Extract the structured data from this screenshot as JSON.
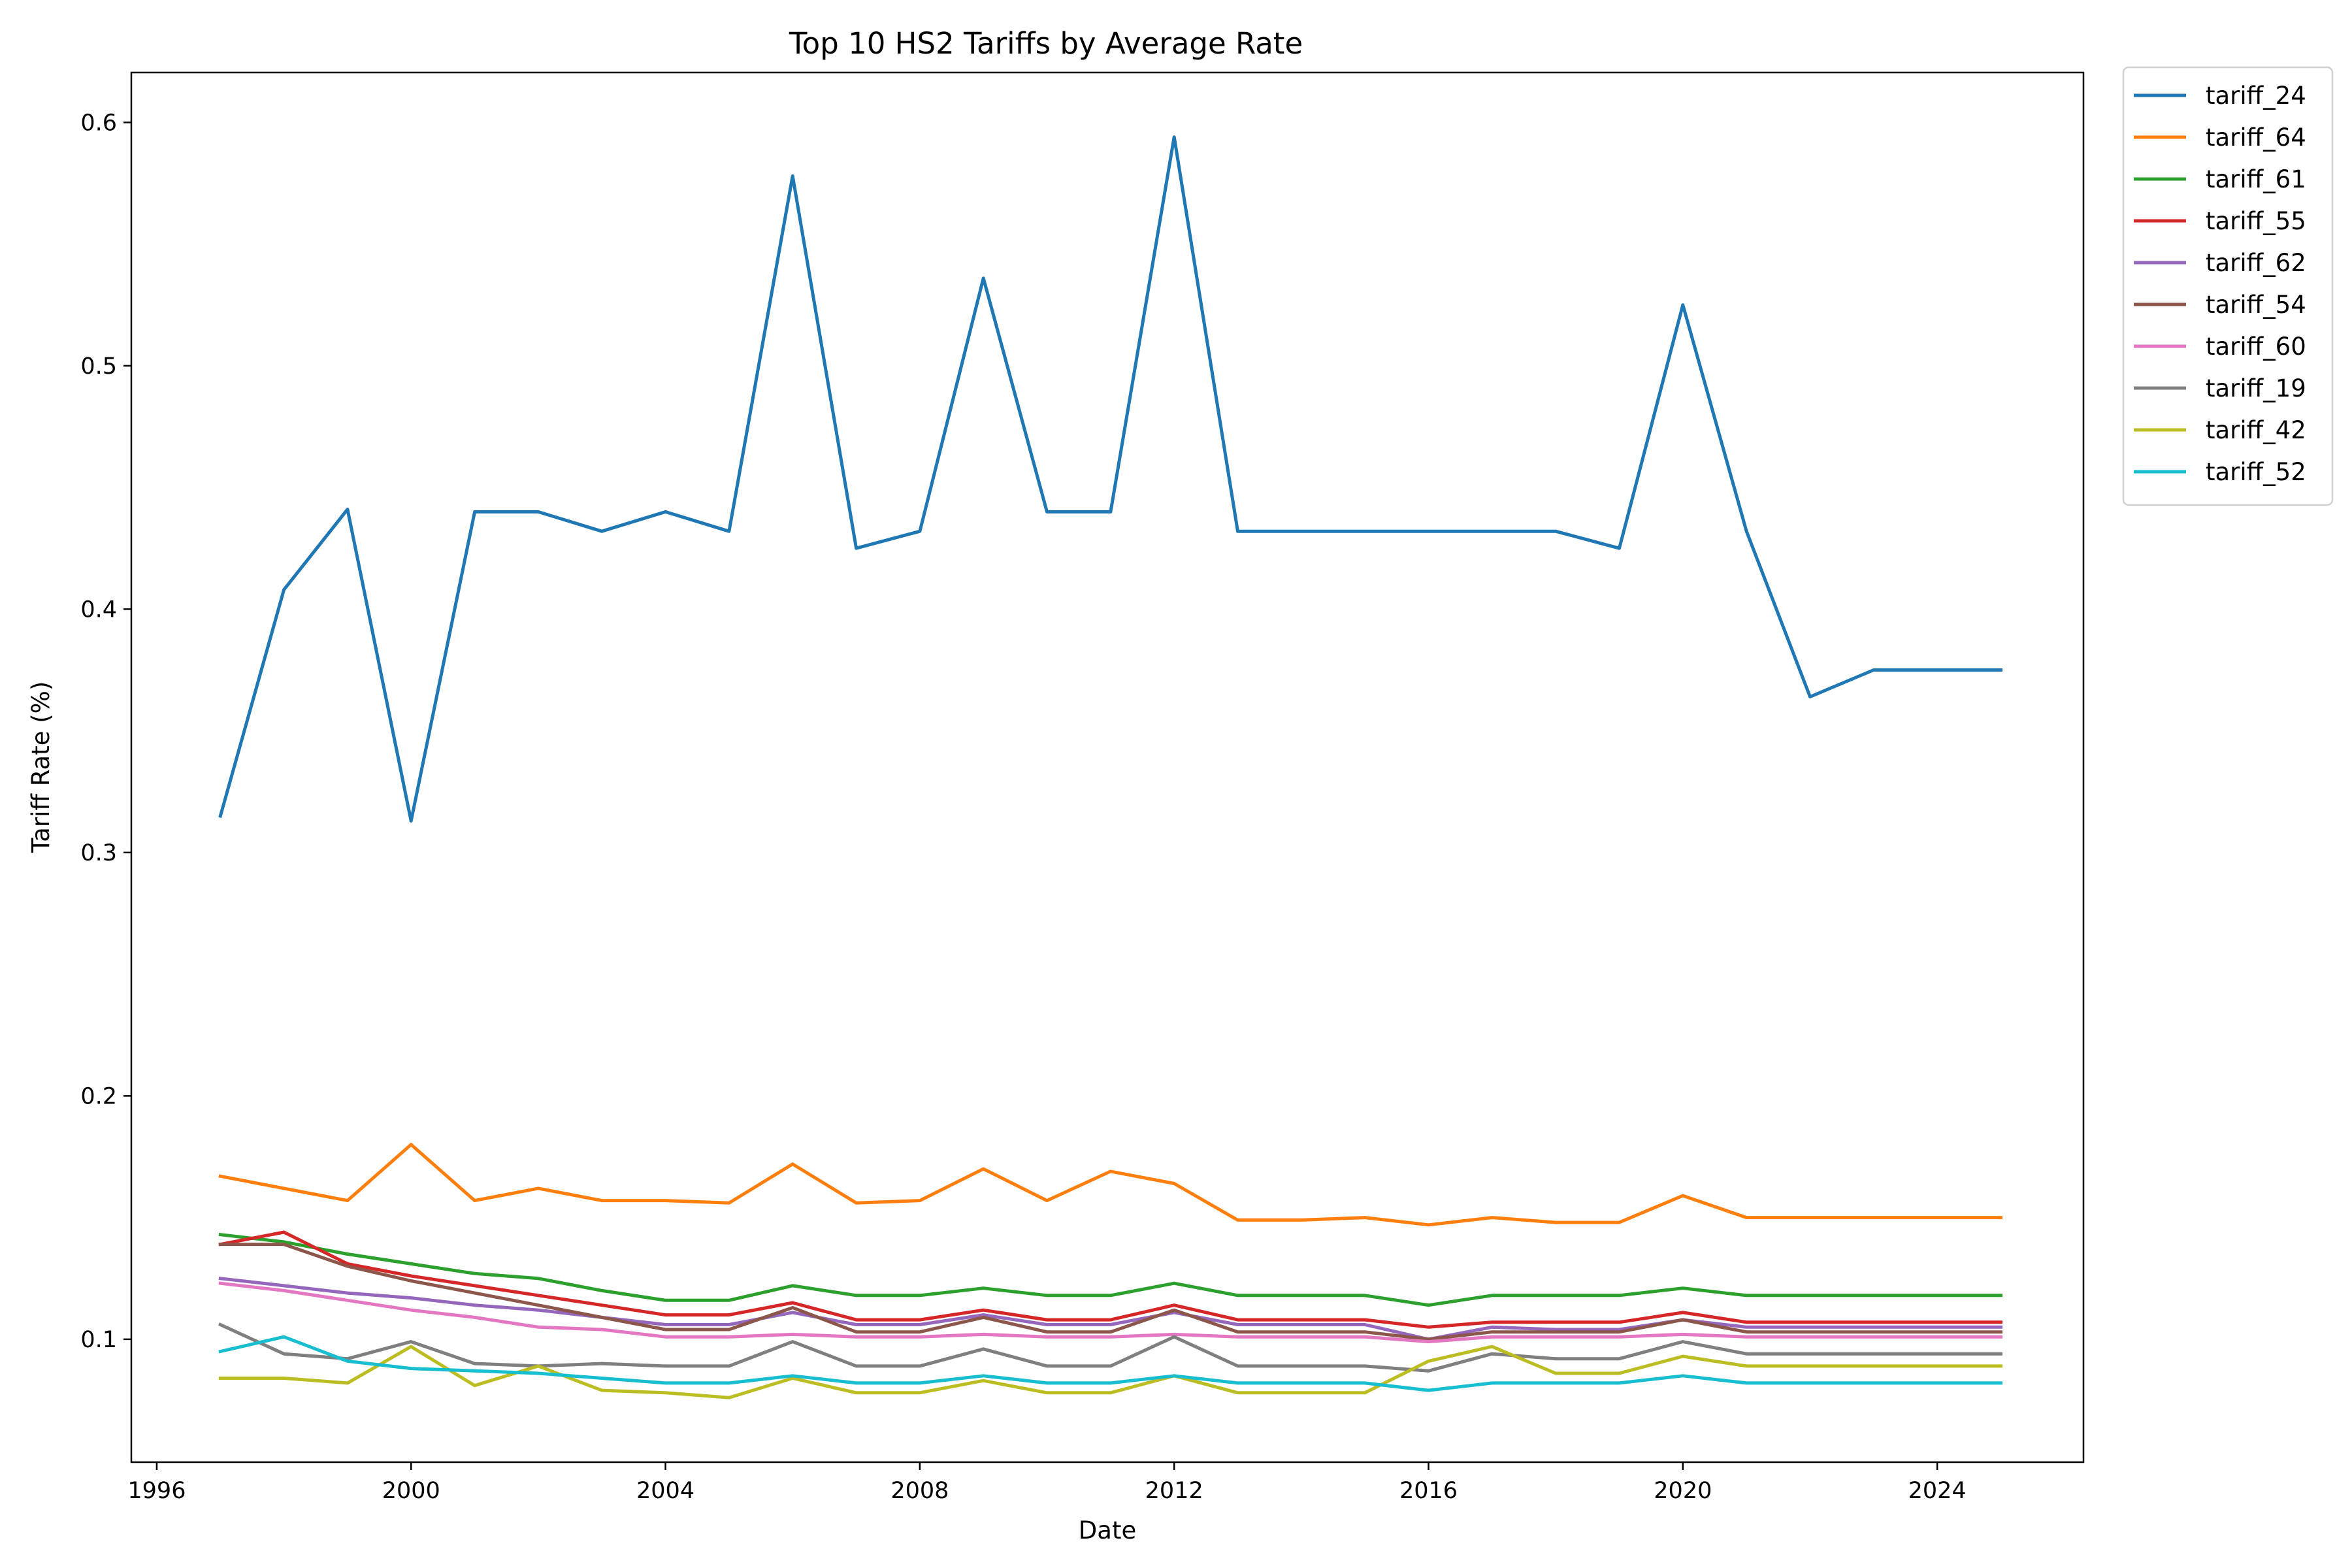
{
  "chart_data": {
    "type": "line",
    "title": "Top 10 HS2 Tariffs by Average Rate",
    "xlabel": "Date",
    "ylabel": "Tariff Rate (%)",
    "xlim": [
      1995.6,
      2026.3
    ],
    "ylim": [
      0.0495,
      0.6205
    ],
    "xticks": [
      1996,
      2000,
      2004,
      2008,
      2012,
      2016,
      2020,
      2024
    ],
    "yticks": [
      0.1,
      0.2,
      0.3,
      0.4,
      0.5,
      0.6
    ],
    "grid": false,
    "legend": "outside-top-right",
    "x": [
      1997,
      1998,
      1999,
      2000,
      2001,
      2002,
      2003,
      2004,
      2005,
      2006,
      2007,
      2008,
      2009,
      2010,
      2011,
      2012,
      2013,
      2014,
      2015,
      2016,
      2017,
      2018,
      2019,
      2020,
      2021,
      2022,
      2023,
      2024,
      2025
    ],
    "series": [
      {
        "name": "tariff_24",
        "color": "#1f77b4",
        "values": [
          0.315,
          0.408,
          0.441,
          0.313,
          0.44,
          0.44,
          0.432,
          0.44,
          0.432,
          0.578,
          0.425,
          0.432,
          0.536,
          0.44,
          0.44,
          0.594,
          0.432,
          0.432,
          0.432,
          0.432,
          0.432,
          0.432,
          0.425,
          0.525,
          0.432,
          0.364,
          0.375,
          0.375,
          0.375
        ]
      },
      {
        "name": "tariff_64",
        "color": "#ff7f0e",
        "values": [
          0.167,
          0.162,
          0.157,
          0.18,
          0.157,
          0.162,
          0.157,
          0.157,
          0.156,
          0.172,
          0.156,
          0.157,
          0.17,
          0.157,
          0.169,
          0.164,
          0.149,
          0.149,
          0.15,
          0.147,
          0.15,
          0.148,
          0.148,
          0.159,
          0.15,
          0.15,
          0.15,
          0.15,
          0.15
        ]
      },
      {
        "name": "tariff_61",
        "color": "#2ca02c",
        "values": [
          0.143,
          0.14,
          0.135,
          0.131,
          0.127,
          0.125,
          0.12,
          0.116,
          0.116,
          0.122,
          0.118,
          0.118,
          0.121,
          0.118,
          0.118,
          0.123,
          0.118,
          0.118,
          0.118,
          0.114,
          0.118,
          0.118,
          0.118,
          0.121,
          0.118,
          0.118,
          0.118,
          0.118,
          0.118
        ]
      },
      {
        "name": "tariff_55",
        "color": "#d62728",
        "values": [
          0.139,
          0.144,
          0.131,
          0.126,
          0.122,
          0.118,
          0.114,
          0.11,
          0.11,
          0.115,
          0.108,
          0.108,
          0.112,
          0.108,
          0.108,
          0.114,
          0.108,
          0.108,
          0.108,
          0.105,
          0.107,
          0.107,
          0.107,
          0.111,
          0.107,
          0.107,
          0.107,
          0.107,
          0.107
        ]
      },
      {
        "name": "tariff_62",
        "color": "#9467bd",
        "values": [
          0.125,
          0.122,
          0.119,
          0.117,
          0.114,
          0.112,
          0.109,
          0.106,
          0.106,
          0.111,
          0.106,
          0.106,
          0.11,
          0.106,
          0.106,
          0.111,
          0.106,
          0.106,
          0.106,
          0.1,
          0.105,
          0.104,
          0.104,
          0.108,
          0.105,
          0.105,
          0.105,
          0.105,
          0.105
        ]
      },
      {
        "name": "tariff_54",
        "color": "#8c564b",
        "values": [
          0.139,
          0.139,
          0.13,
          0.124,
          0.119,
          0.114,
          0.109,
          0.104,
          0.104,
          0.113,
          0.103,
          0.103,
          0.109,
          0.103,
          0.103,
          0.112,
          0.103,
          0.103,
          0.103,
          0.1,
          0.103,
          0.103,
          0.103,
          0.108,
          0.103,
          0.103,
          0.103,
          0.103,
          0.103
        ]
      },
      {
        "name": "tariff_60",
        "color": "#e377c2",
        "values": [
          0.123,
          0.12,
          0.116,
          0.112,
          0.109,
          0.105,
          0.104,
          0.101,
          0.101,
          0.102,
          0.101,
          0.101,
          0.102,
          0.101,
          0.101,
          0.102,
          0.101,
          0.101,
          0.101,
          0.099,
          0.101,
          0.101,
          0.101,
          0.102,
          0.101,
          0.101,
          0.101,
          0.101,
          0.101
        ]
      },
      {
        "name": "tariff_19",
        "color": "#7f7f7f",
        "values": [
          0.106,
          0.094,
          0.092,
          0.099,
          0.09,
          0.089,
          0.09,
          0.089,
          0.089,
          0.099,
          0.089,
          0.089,
          0.096,
          0.089,
          0.089,
          0.101,
          0.089,
          0.089,
          0.089,
          0.087,
          0.094,
          0.092,
          0.092,
          0.099,
          0.094,
          0.094,
          0.094,
          0.094,
          0.094
        ]
      },
      {
        "name": "tariff_42",
        "color": "#bcbd22",
        "values": [
          0.084,
          0.084,
          0.082,
          0.097,
          0.081,
          0.089,
          0.079,
          0.078,
          0.076,
          0.084,
          0.078,
          0.078,
          0.083,
          0.078,
          0.078,
          0.085,
          0.078,
          0.078,
          0.078,
          0.091,
          0.097,
          0.086,
          0.086,
          0.093,
          0.089,
          0.089,
          0.089,
          0.089,
          0.089
        ]
      },
      {
        "name": "tariff_52",
        "color": "#17becf",
        "values": [
          0.095,
          0.101,
          0.091,
          0.088,
          0.087,
          0.086,
          0.084,
          0.082,
          0.082,
          0.085,
          0.082,
          0.082,
          0.085,
          0.082,
          0.082,
          0.085,
          0.082,
          0.082,
          0.082,
          0.079,
          0.082,
          0.082,
          0.082,
          0.085,
          0.082,
          0.082,
          0.082,
          0.082,
          0.082
        ]
      }
    ]
  }
}
